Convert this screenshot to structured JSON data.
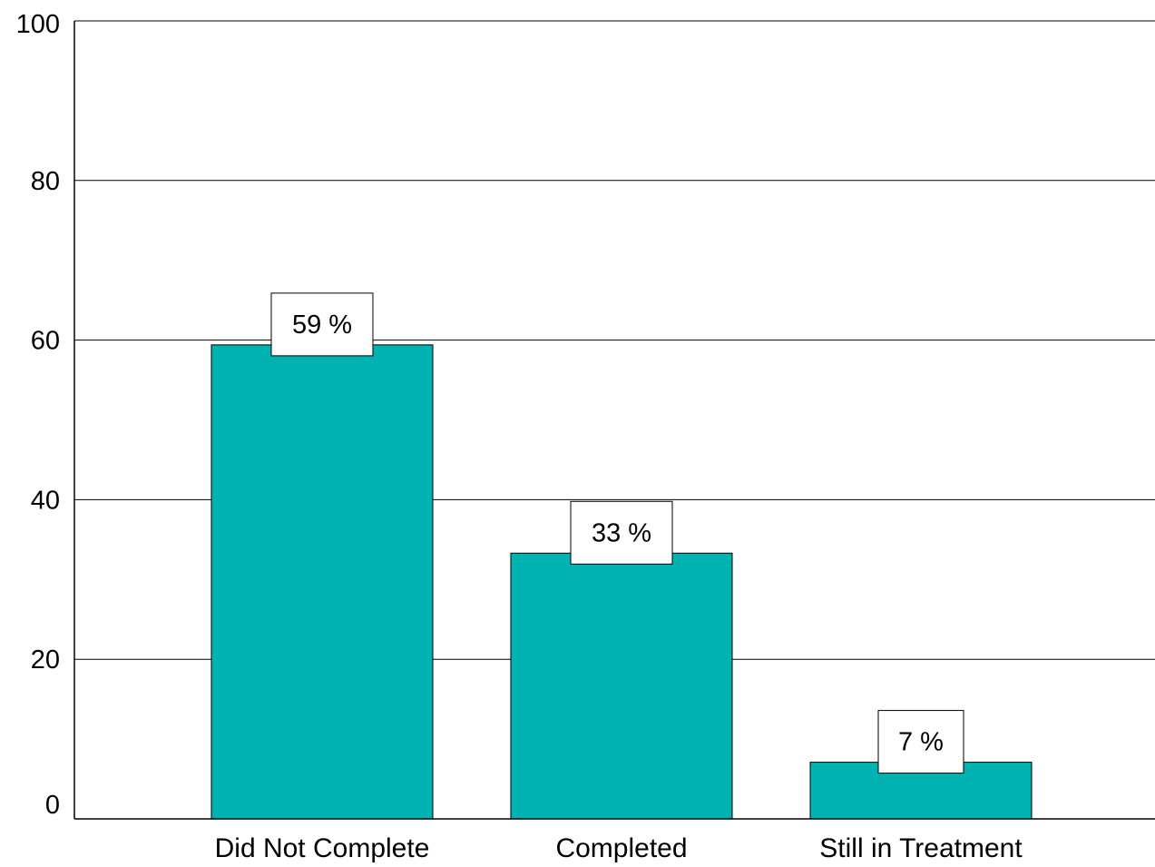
{
  "chart_data": {
    "type": "bar",
    "categories": [
      "Did Not Complete",
      "Completed",
      "Still in Treatment"
    ],
    "values": [
      59.4,
      33.3,
      7.1
    ],
    "data_labels": [
      "59 %",
      "33 %",
      "7 %"
    ],
    "y_ticks": [
      "0",
      "20",
      "40",
      "60",
      "80",
      "100"
    ],
    "y_tick_values": [
      0,
      20,
      40,
      60,
      80,
      100
    ],
    "ylim": [
      0,
      100
    ],
    "title": "",
    "xlabel": "",
    "ylabel": "",
    "grid": true,
    "legend": "none",
    "colors": {
      "bar": "#00b2b2",
      "bar_stroke": "#000000",
      "gridline": "#000000",
      "label_box": "#ffffff"
    }
  }
}
